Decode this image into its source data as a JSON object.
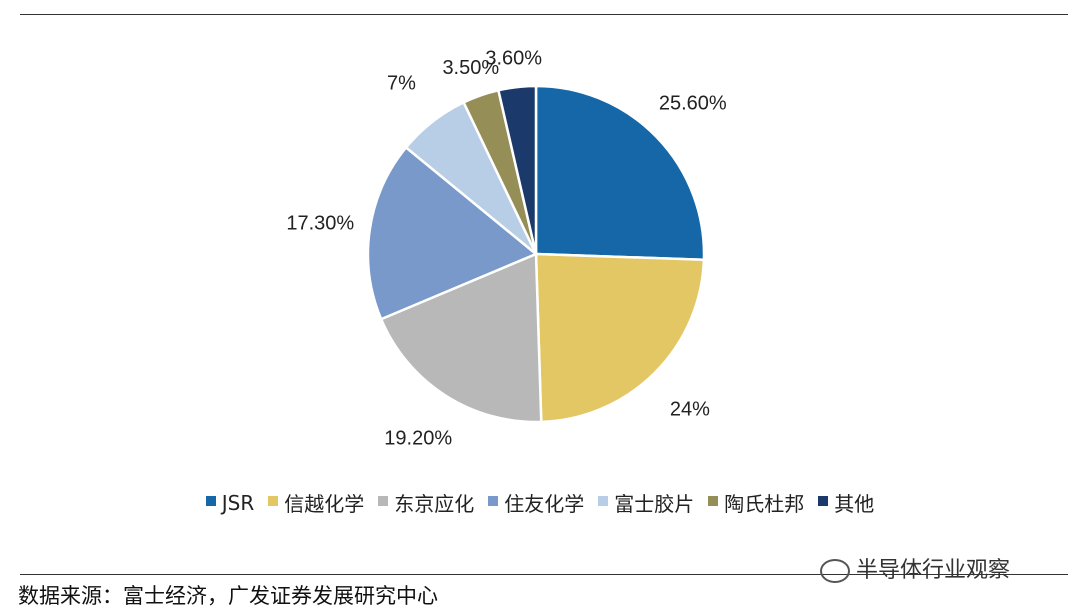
{
  "chart_data": {
    "type": "pie",
    "categories": [
      "JSR",
      "信越化学",
      "东京应化",
      "住友化学",
      "富士胶片",
      "陶氏杜邦",
      "其他"
    ],
    "values": [
      25.6,
      24,
      19.2,
      17.3,
      7,
      3.5,
      3.6
    ],
    "data_labels": [
      "25.60%",
      "24%",
      "19.20%",
      "17.30%",
      "7%",
      "3.50%",
      "3.60%"
    ],
    "colors": [
      "#1667a8",
      "#e4c765",
      "#b8b8b8",
      "#7899c9",
      "#b8cde6",
      "#968e57",
      "#1b3a6b"
    ],
    "legend_position": "bottom",
    "start_angle": "12 o'clock",
    "direction": "clockwise"
  },
  "footer": {
    "source": "数据来源：富士经济，广发证券发展研究中心",
    "watermark": "半导体行业观察"
  }
}
